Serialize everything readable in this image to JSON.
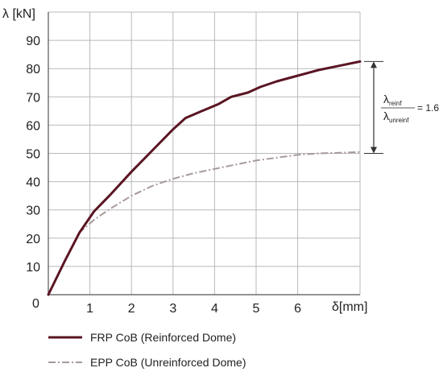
{
  "chart_data": {
    "type": "line",
    "xlabel": "δ[mm]",
    "ylabel": "λ [kN]",
    "xlim": [
      0,
      7.5
    ],
    "ylim": [
      0,
      100
    ],
    "x_ticks": [
      1,
      2,
      3,
      4,
      5,
      6
    ],
    "y_ticks": [
      10,
      20,
      30,
      40,
      50,
      60,
      70,
      80,
      90
    ],
    "origin_label": "0",
    "grid": true,
    "legend_position": "bottom-left",
    "series": [
      {
        "name": "FRP CoB (Reinforced Dome)",
        "color": "#5a1522",
        "style": "solid",
        "x": [
          0,
          0.4,
          0.75,
          1.1,
          1.5,
          2.0,
          2.5,
          3.0,
          3.3,
          3.7,
          4.1,
          4.4,
          4.8,
          5.1,
          5.5,
          6.0,
          6.5,
          7.0,
          7.5
        ],
        "y": [
          0,
          12,
          22,
          29.5,
          35.5,
          43.5,
          51,
          58.5,
          62.5,
          65,
          67.5,
          70,
          71.5,
          73.5,
          75.5,
          77.5,
          79.5,
          81,
          82.5
        ]
      },
      {
        "name": "EPP CoB (Unreinforced Dome)",
        "color": "#a89a9a",
        "style": "dashdot",
        "x": [
          0,
          0.4,
          0.75,
          1.1,
          1.5,
          2.0,
          2.5,
          3.0,
          3.5,
          4.0,
          4.5,
          5.0,
          5.5,
          6.0,
          6.5,
          7.0,
          7.5
        ],
        "y": [
          0,
          12,
          22,
          26.5,
          30.5,
          35,
          38.5,
          41,
          43,
          44.5,
          46,
          47.5,
          48.5,
          49.5,
          50,
          50.2,
          50.5
        ]
      }
    ],
    "annotation": {
      "numerator": "λ",
      "numerator_sub": "reinf",
      "denominator": "λ",
      "denominator_sub": "unreinf",
      "equals_text": "= 1.6",
      "y_top": 82.5,
      "y_bottom": 50
    }
  }
}
